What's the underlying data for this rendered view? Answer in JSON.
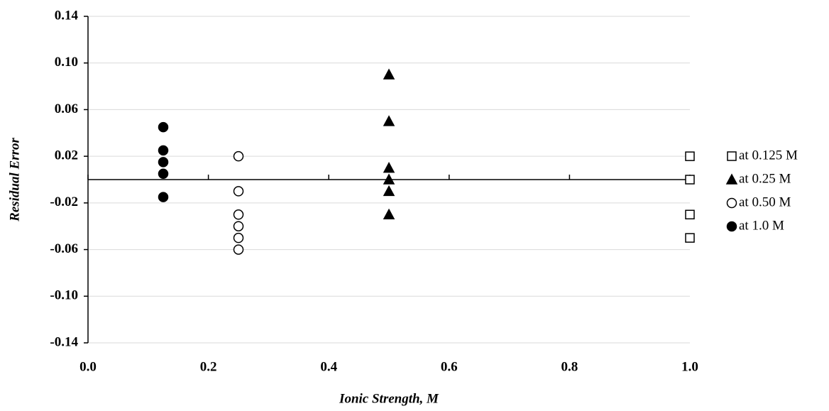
{
  "chart_data": {
    "type": "scatter",
    "x_label": "Ionic Strength, M",
    "y_label": "Residual Error",
    "xlim": [
      0,
      1
    ],
    "xticks": [
      {
        "value": 0,
        "label": "0.0"
      },
      {
        "value": 0.2,
        "label": "0.2"
      },
      {
        "value": 0.4,
        "label": "0.4"
      },
      {
        "value": 0.6,
        "label": "0.6"
      },
      {
        "value": 0.8,
        "label": "0.8"
      },
      {
        "value": 1,
        "label": "1.0"
      }
    ],
    "ylim": [
      -0.14,
      0.14
    ],
    "yticks": [
      -0.14,
      {
        "value": -0.1,
        "label": "-0.10"
      },
      -0.06,
      -0.02,
      0.02,
      0.06,
      {
        "value": 0.1,
        "label": "0.10"
      },
      0.14
    ],
    "grid": true,
    "legend": "right",
    "series": [
      {
        "name": "at 0.125 M",
        "color": "#000000",
        "marker": "square",
        "filled": false,
        "x": [
          1,
          1,
          1,
          1
        ],
        "values": [
          0.02,
          0,
          -0.03,
          -0.05
        ]
      },
      {
        "name": "at 0.25 M",
        "color": "#000000",
        "marker": "triangle",
        "filled": true,
        "x": [
          0.5,
          0.5,
          0.5,
          0.5,
          0.5,
          0.5
        ],
        "values": [
          0.09,
          0.05,
          0.01,
          0,
          -0.01,
          -0.03
        ]
      },
      {
        "name": "at 0.50 M",
        "color": "#000000",
        "marker": "circle",
        "filled": false,
        "x": [
          0.25,
          0.25,
          0.25,
          0.25,
          0.25,
          0.25
        ],
        "values": [
          0.02,
          -0.01,
          -0.03,
          -0.04,
          -0.05,
          -0.06
        ]
      },
      {
        "name": "at 1.0 M",
        "color": "#000000",
        "marker": "circle",
        "filled": true,
        "x": [
          0.125,
          0.125,
          0.125,
          0.125,
          0.125
        ],
        "values": [
          0.045,
          0.025,
          0.015,
          0.005,
          -0.015
        ]
      }
    ]
  }
}
